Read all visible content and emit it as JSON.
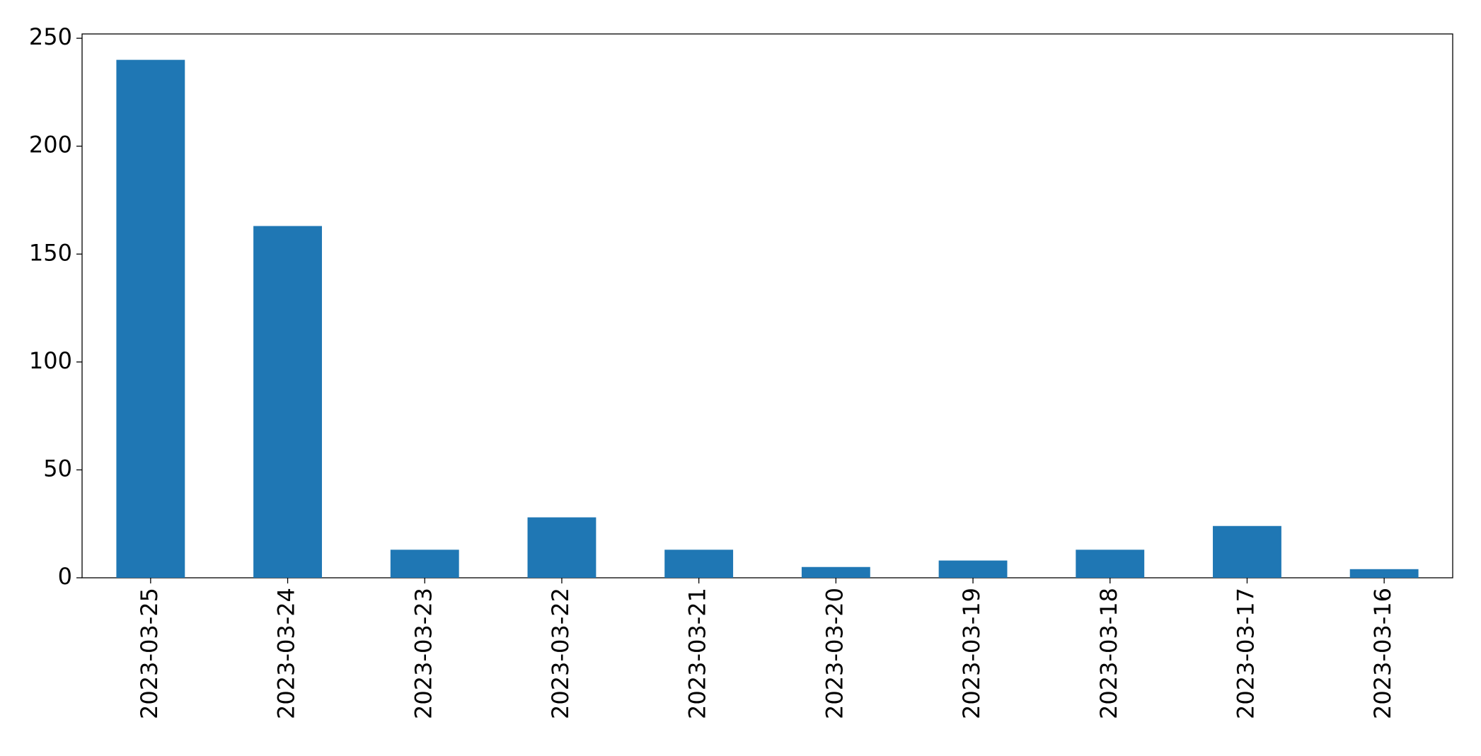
{
  "chart_data": {
    "type": "bar",
    "categories": [
      "2023-03-25",
      "2023-03-24",
      "2023-03-23",
      "2023-03-22",
      "2023-03-21",
      "2023-03-20",
      "2023-03-19",
      "2023-03-18",
      "2023-03-17",
      "2023-03-16"
    ],
    "values": [
      240,
      163,
      13,
      28,
      13,
      5,
      8,
      13,
      24,
      4
    ],
    "color": "#1f77b4",
    "ylim": [
      0,
      252
    ],
    "yticks": [
      0,
      50,
      100,
      150,
      200,
      250
    ],
    "grid": false
  }
}
